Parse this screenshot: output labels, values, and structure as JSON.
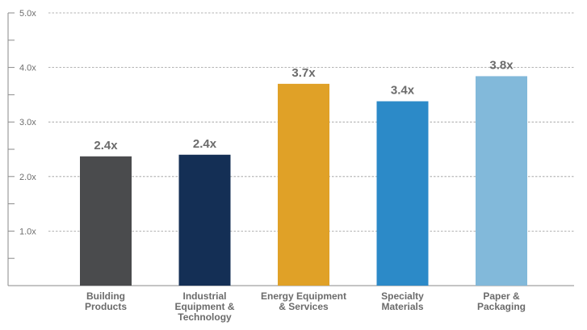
{
  "chart_data": {
    "type": "bar",
    "title": "",
    "xlabel": "",
    "ylabel": "",
    "ylim": [
      0,
      5
    ],
    "y_ticks": [
      {
        "value": 1,
        "label": "1.0x"
      },
      {
        "value": 2,
        "label": "2.0x"
      },
      {
        "value": 3,
        "label": "3.0x"
      },
      {
        "value": 4,
        "label": "4.0x"
      },
      {
        "value": 5,
        "label": "5.0x"
      }
    ],
    "categories": [
      [
        "Building",
        "Products"
      ],
      [
        "Industrial",
        "Equipment &",
        "Technology"
      ],
      [
        "Energy Equipment",
        "& Services"
      ],
      [
        "Specialty",
        "Materials"
      ],
      [
        "Paper &",
        "Packaging"
      ]
    ],
    "values": [
      2.37,
      2.4,
      3.7,
      3.38,
      3.84
    ],
    "data_labels": [
      "2.4x",
      "2.4x",
      "3.7x",
      "3.4x",
      "3.8x"
    ],
    "colors": [
      "#4a4b4d",
      "#142f55",
      "#e0a127",
      "#2c8ac8",
      "#82b9da"
    ],
    "grid": true,
    "grid_style": "dashed",
    "legend": "none",
    "axis_color": "#8a8a8a",
    "grid_color": "#9a9a9a"
  }
}
